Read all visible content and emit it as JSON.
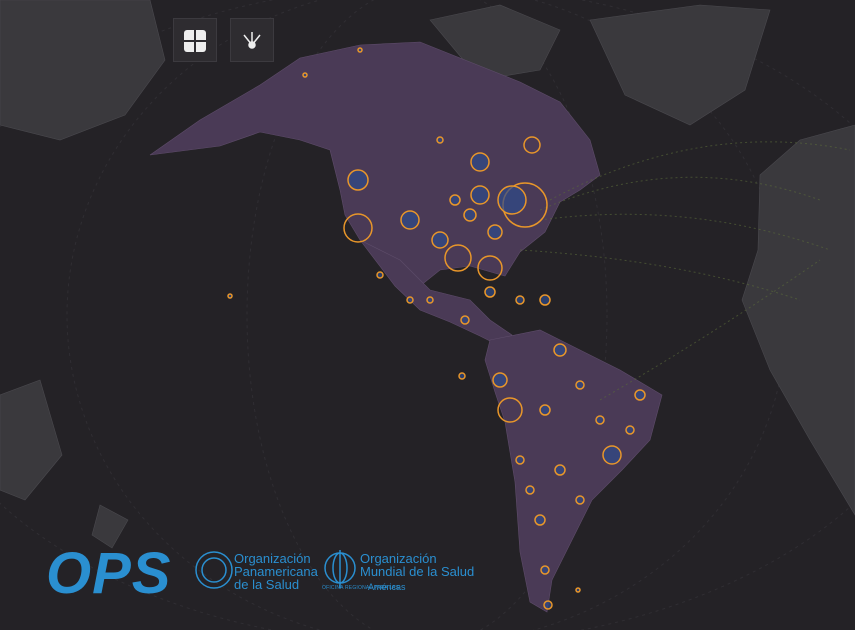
{
  "logos": {
    "ops": "OPS",
    "paho": [
      "Organización",
      "Panamericana",
      "de la Salud"
    ],
    "who": [
      "Organización",
      "Mundial de la Salud"
    ],
    "who_tagline": "OFICINA REGIONAL PARA LAS",
    "who_region": "Américas"
  }
}
